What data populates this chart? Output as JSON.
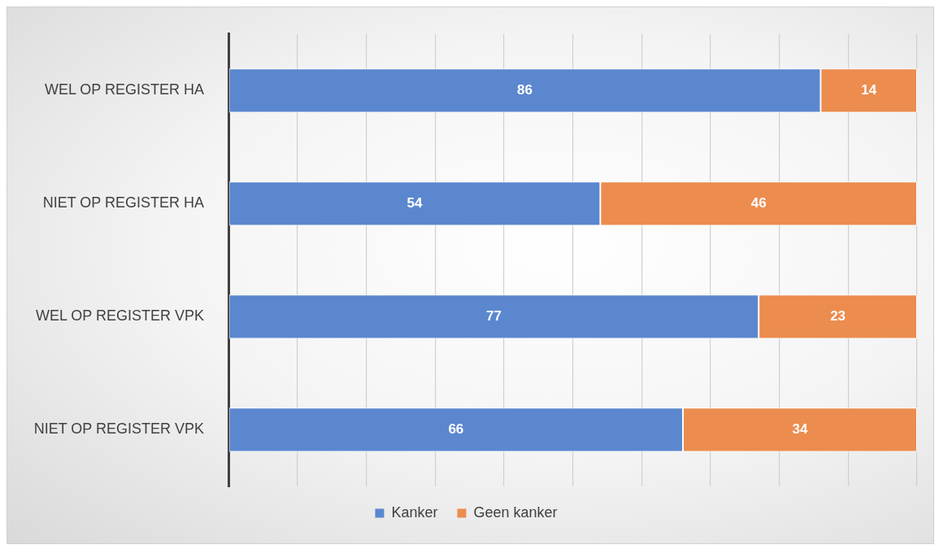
{
  "chart_data": {
    "type": "bar",
    "orientation": "horizontal",
    "stacked": true,
    "categories": [
      "WEL OP REGISTER HA",
      "NIET OP REGISTER HA",
      "WEL OP REGISTER VPK",
      "NIET OP REGISTER VPK"
    ],
    "series": [
      {
        "name": "Kanker",
        "color": "#5b87cf",
        "values": [
          86,
          54,
          77,
          66
        ]
      },
      {
        "name": "Geen kanker",
        "color": "#ec8c4e",
        "values": [
          14,
          46,
          23,
          34
        ]
      }
    ],
    "xlim": [
      0,
      100
    ],
    "xticks": [
      {
        "value": 0,
        "label": null
      },
      {
        "value": 10,
        "label": null
      },
      {
        "value": 20,
        "label": null
      },
      {
        "value": 30,
        "label": null
      },
      {
        "value": 40,
        "label": null
      },
      {
        "value": 50,
        "label": null
      },
      {
        "value": 60,
        "label": null
      },
      {
        "value": 70,
        "label": null
      },
      {
        "value": 80,
        "label": null
      },
      {
        "value": 90,
        "label": null
      },
      {
        "value": 100,
        "label": null
      }
    ],
    "tick_labels": "y",
    "grid": "x",
    "legend": "bottom",
    "data_labels": true
  }
}
